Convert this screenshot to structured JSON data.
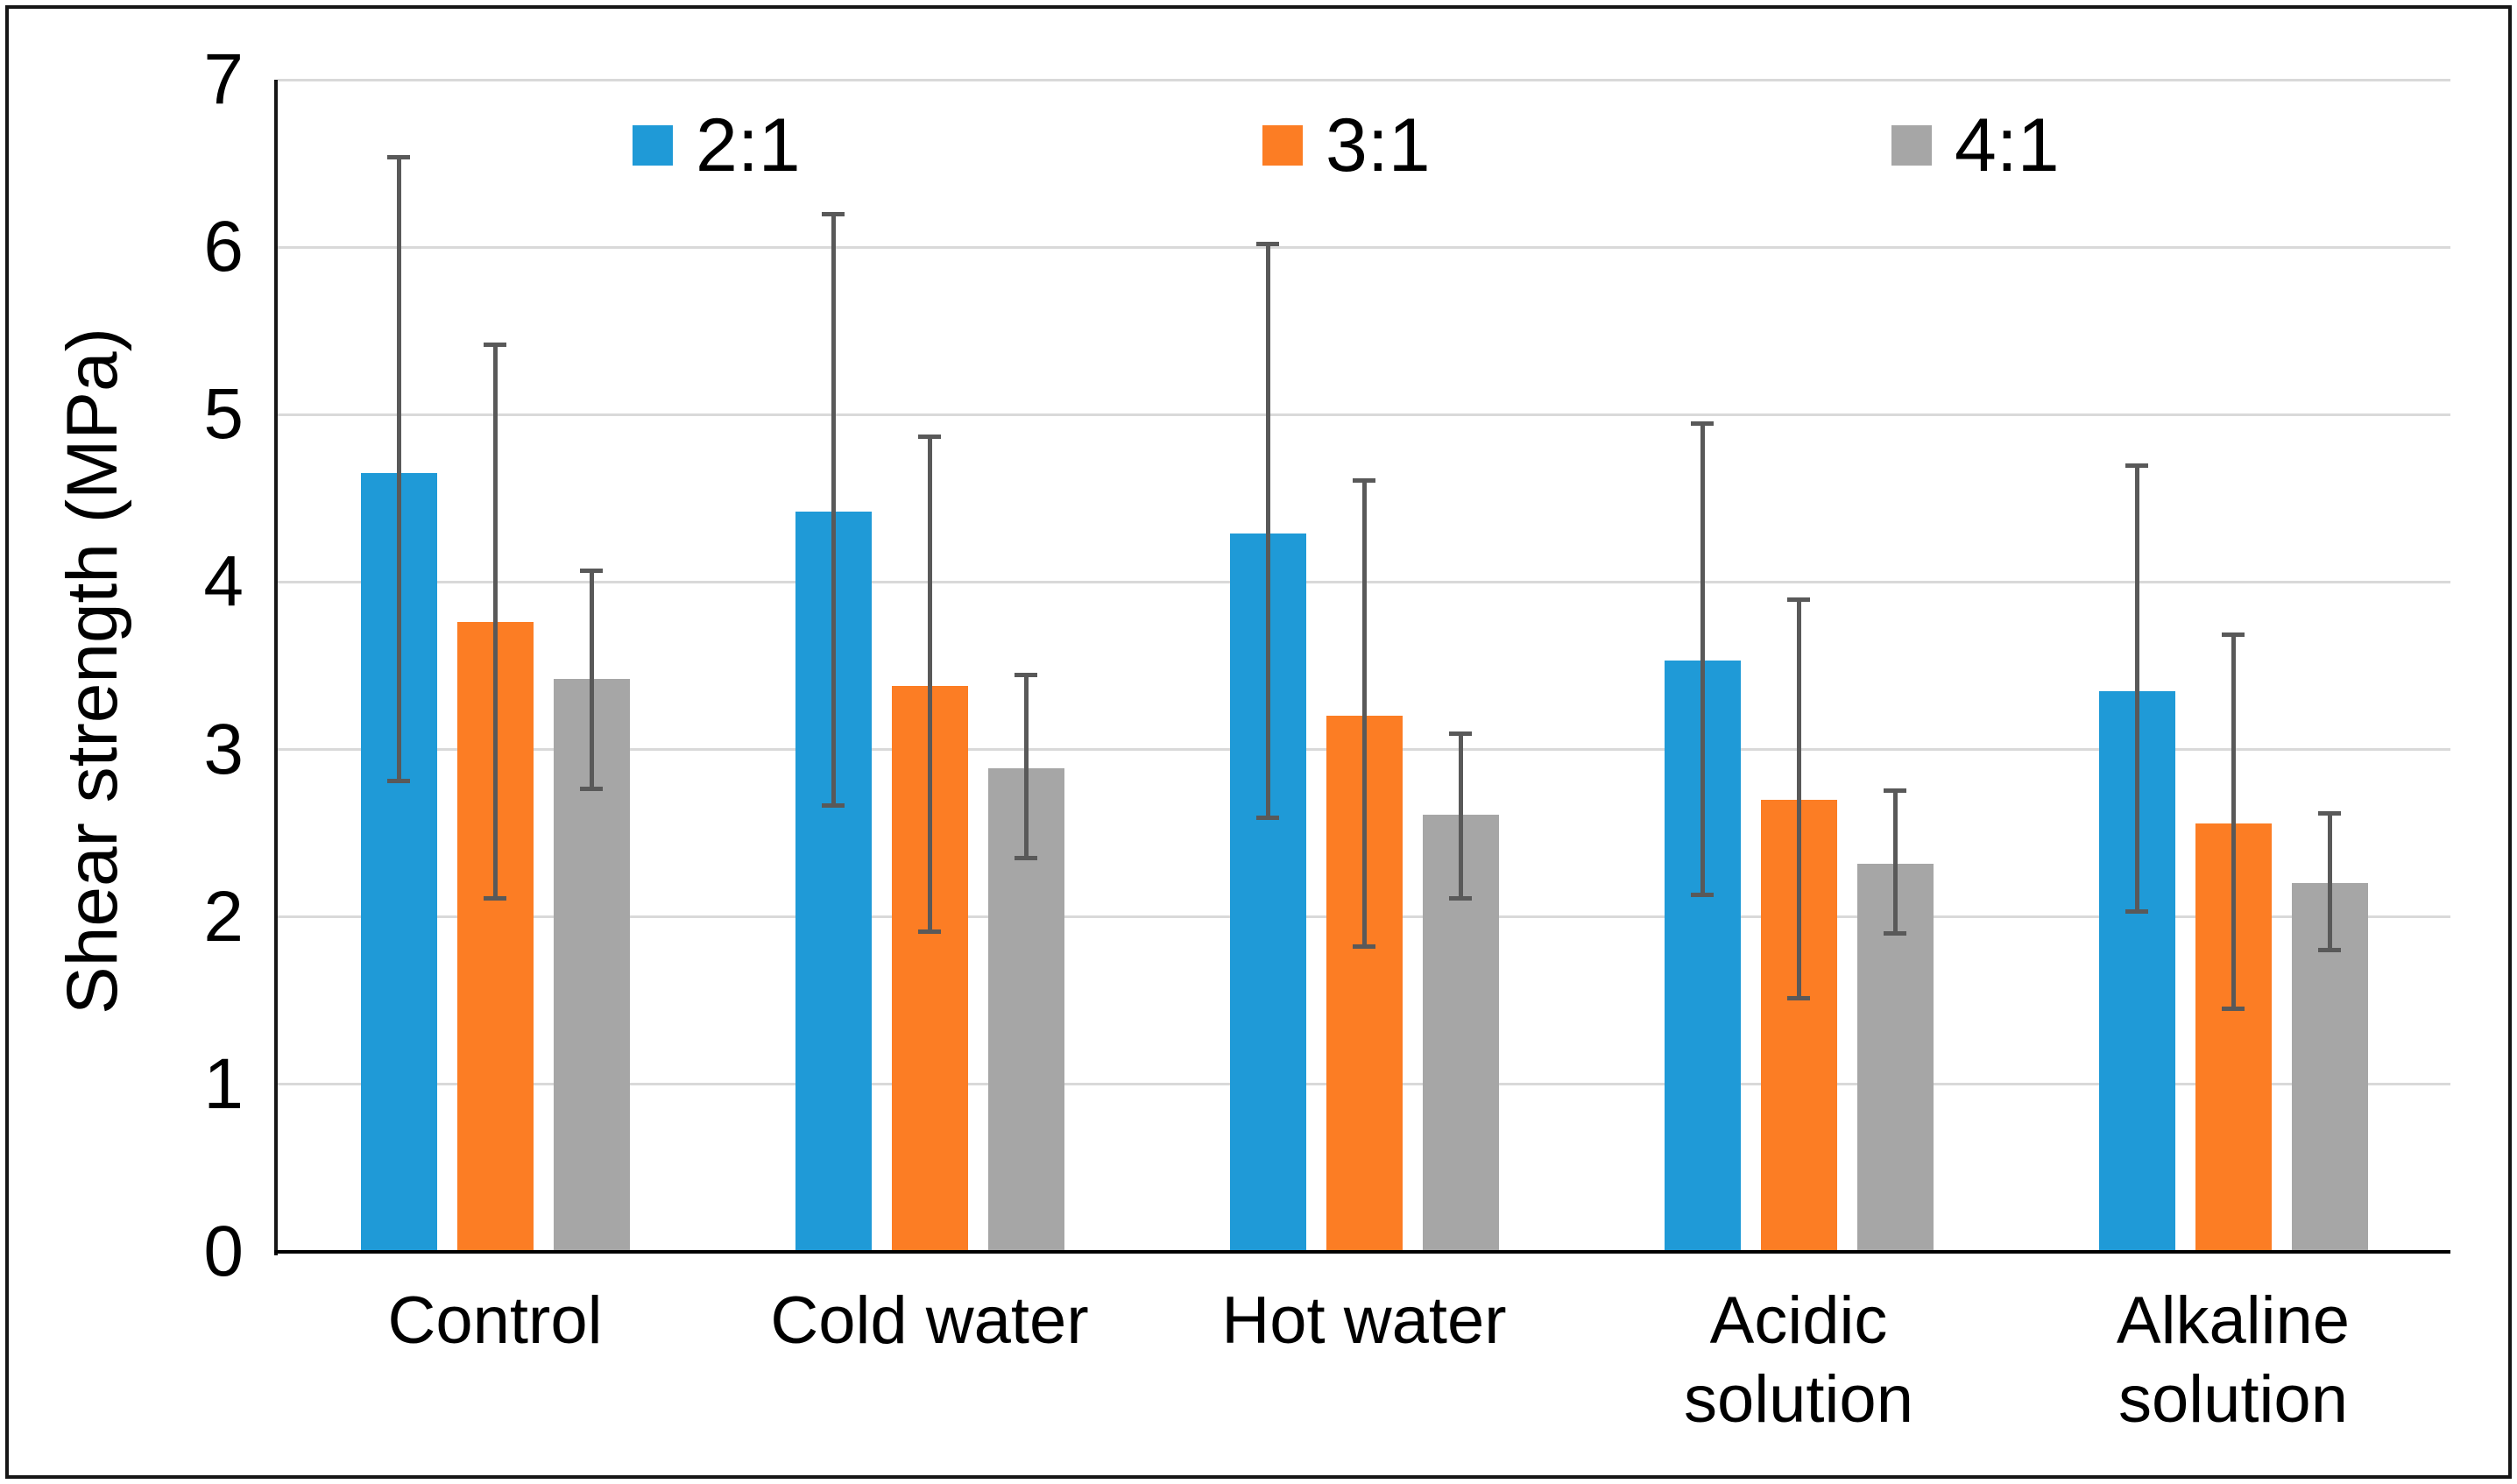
{
  "figure": {
    "background": "#ffffff",
    "border_color": "#161616"
  },
  "chart_data": {
    "type": "bar",
    "title": "",
    "xlabel": "",
    "ylabel": "Shear strength (MPa)",
    "ylim": [
      0,
      7
    ],
    "yticks": [
      0,
      1,
      2,
      3,
      4,
      5,
      6,
      7
    ],
    "grid": "horizontal",
    "gridline_color": "#D9D9D9",
    "axis_color": "#000000",
    "error_bar_color": "#595959",
    "legend_position": "top",
    "categories": [
      "Control",
      "Cold water",
      "Hot water",
      "Acidic solution",
      "Alkaline solution"
    ],
    "series": [
      {
        "name": "2:1",
        "color": "#1F9AD7",
        "values": [
          4.65,
          4.42,
          4.29,
          3.53,
          3.35
        ],
        "error_low": [
          2.8,
          2.65,
          2.58,
          2.12,
          2.02
        ],
        "error_high": [
          6.55,
          6.21,
          6.03,
          4.96,
          4.71
        ]
      },
      {
        "name": "3:1",
        "color": "#FC7D24",
        "values": [
          3.76,
          3.38,
          3.2,
          2.7,
          2.56
        ],
        "error_low": [
          2.1,
          1.9,
          1.81,
          1.5,
          1.44
        ],
        "error_high": [
          5.43,
          4.88,
          4.62,
          3.91,
          3.7
        ]
      },
      {
        "name": "4:1",
        "color": "#A6A6A6",
        "values": [
          3.42,
          2.89,
          2.61,
          2.32,
          2.2
        ],
        "error_low": [
          2.75,
          2.34,
          2.1,
          1.89,
          1.79
        ],
        "error_high": [
          4.08,
          3.46,
          3.11,
          2.77,
          2.63
        ]
      }
    ]
  }
}
